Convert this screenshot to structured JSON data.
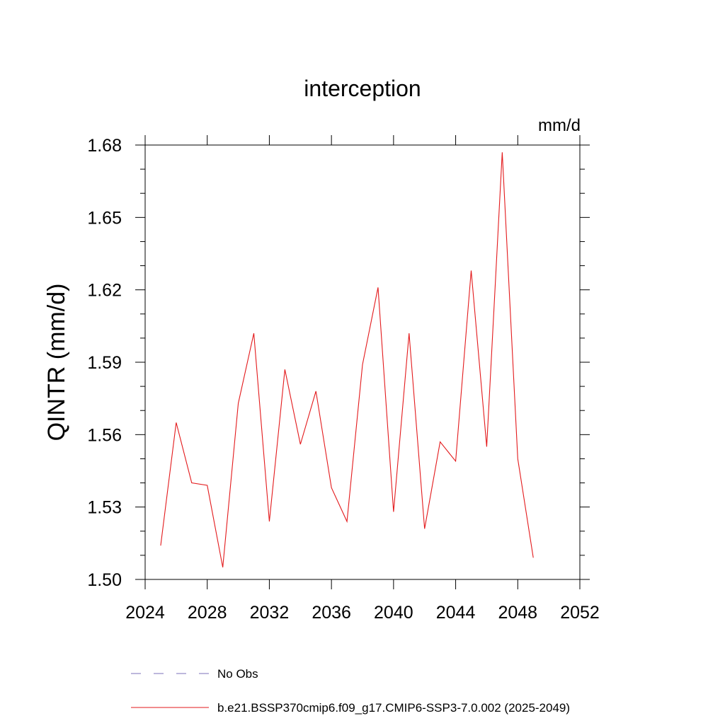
{
  "chart_data": {
    "type": "line",
    "title": "interception",
    "units_label": "mm/d",
    "ylabel": "QINTR  (mm/d)",
    "xlabel": "",
    "xlim": [
      2024,
      2052
    ],
    "ylim": [
      1.5,
      1.68
    ],
    "x_ticks": [
      2024,
      2028,
      2032,
      2036,
      2040,
      2044,
      2048,
      2052
    ],
    "x_tick_labels": [
      "2024",
      "2028",
      "2032",
      "2036",
      "2040",
      "2044",
      "2048",
      "2052"
    ],
    "y_ticks": [
      1.5,
      1.53,
      1.56,
      1.59,
      1.62,
      1.65,
      1.68
    ],
    "y_tick_labels": [
      "1.50",
      "1.53",
      "1.56",
      "1.59",
      "1.62",
      "1.65",
      "1.68"
    ],
    "series": [
      {
        "name": "b.e21.BSSP370cmip6.f09_g17.CMIP6-SSP3-7.0.002 (2025-2049)",
        "color": "#e31a1c",
        "x": [
          2025,
          2026,
          2027,
          2028,
          2029,
          2030,
          2031,
          2032,
          2033,
          2034,
          2035,
          2036,
          2037,
          2038,
          2039,
          2040,
          2041,
          2042,
          2043,
          2044,
          2045,
          2046,
          2047,
          2048,
          2049
        ],
        "values": [
          1.514,
          1.565,
          1.54,
          1.539,
          1.505,
          1.573,
          1.602,
          1.524,
          1.587,
          1.556,
          1.578,
          1.538,
          1.524,
          1.589,
          1.621,
          1.528,
          1.602,
          1.521,
          1.557,
          1.549,
          1.628,
          1.555,
          1.677,
          1.55,
          1.509
        ]
      }
    ],
    "legend": [
      {
        "label": "No Obs",
        "style": "dashed",
        "color": "#7b72b8"
      },
      {
        "label": "b.e21.BSSP370cmip6.f09_g17.CMIP6-SSP3-7.0.002 (2025-2049)",
        "style": "solid",
        "color": "#e31a1c"
      }
    ],
    "legend_placement": "bottom",
    "grid": false
  }
}
